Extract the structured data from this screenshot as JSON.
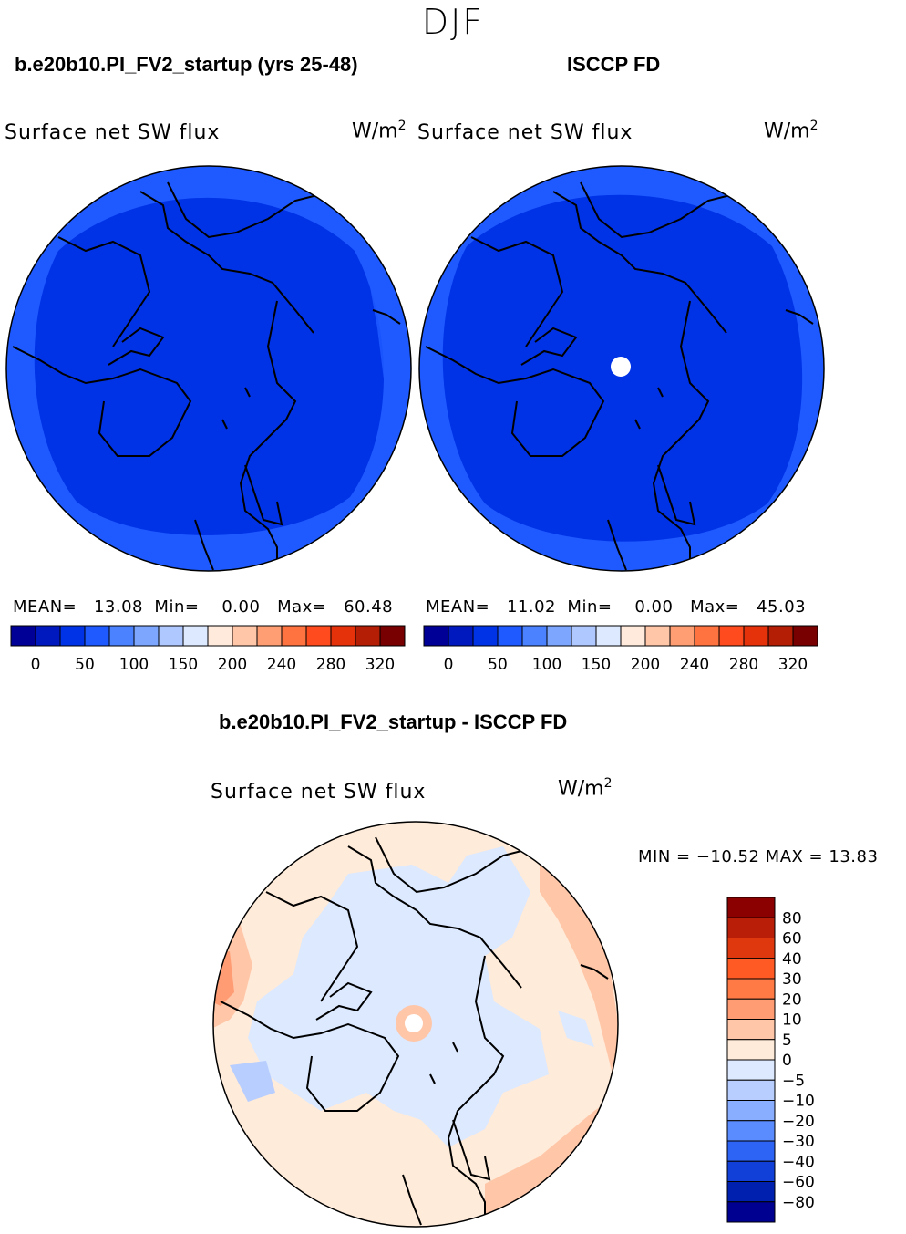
{
  "season": "DJF",
  "left_panel": {
    "title": "b.e20b10.PI_FV2_startup (yrs 25-48)",
    "variable": "Surface net SW flux",
    "units_base": "W/m",
    "units_exp": "2",
    "mean_label": "MEAN=",
    "mean_value": "13.08",
    "min_label": "Min=",
    "min_value": "0.00",
    "max_label": "Max=",
    "max_value": "60.48"
  },
  "right_panel": {
    "title": "ISCCP FD",
    "variable": "Surface net SW flux",
    "units_base": "W/m",
    "units_exp": "2",
    "mean_label": "MEAN=",
    "mean_value": "11.02",
    "min_label": "Min=",
    "min_value": "0.00",
    "max_label": "Max=",
    "max_value": "45.03"
  },
  "diff_panel": {
    "title": "b.e20b10.PI_FV2_startup - ISCCP FD",
    "variable": "Surface net SW flux",
    "units_base": "W/m",
    "units_exp": "2",
    "minmax_text": "MIN = −10.52 MAX =   13.83"
  },
  "chart_data": [
    {
      "type": "heatmap",
      "projection": "north polar stereographic",
      "title": "b.e20b10.PI_FV2_startup (yrs 25-48)",
      "field": "Surface net SW flux",
      "units": "W/m2",
      "mean": 13.08,
      "min": 0.0,
      "max": 60.48,
      "colorbar_levels": [
        0,
        25,
        50,
        75,
        100,
        125,
        150,
        175,
        200,
        220,
        240,
        260,
        280,
        300,
        320
      ],
      "colorbar_tick_labels": [
        "0",
        "50",
        "100",
        "150",
        "200",
        "240",
        "280",
        "320"
      ],
      "colorbar_colors": [
        "#000096",
        "#0019bf",
        "#0032e6",
        "#1e5aff",
        "#4b82ff",
        "#7da7ff",
        "#afc8ff",
        "#dce9ff",
        "#ffeadb",
        "#ffc6a8",
        "#ff9e73",
        "#ff7340",
        "#ff4b1e",
        "#e6320a",
        "#b41e05",
        "#780000"
      ]
    },
    {
      "type": "heatmap",
      "projection": "north polar stereographic",
      "title": "ISCCP FD",
      "field": "Surface net SW flux",
      "units": "W/m2",
      "mean": 11.02,
      "min": 0.0,
      "max": 45.03,
      "colorbar_levels": [
        0,
        25,
        50,
        75,
        100,
        125,
        150,
        175,
        200,
        220,
        240,
        260,
        280,
        300,
        320
      ],
      "colorbar_tick_labels": [
        "0",
        "50",
        "100",
        "150",
        "200",
        "240",
        "280",
        "320"
      ],
      "colorbar_colors": [
        "#000096",
        "#0019bf",
        "#0032e6",
        "#1e5aff",
        "#4b82ff",
        "#7da7ff",
        "#afc8ff",
        "#dce9ff",
        "#ffeadb",
        "#ffc6a8",
        "#ff9e73",
        "#ff7340",
        "#ff4b1e",
        "#e6320a",
        "#b41e05",
        "#780000"
      ]
    },
    {
      "type": "heatmap",
      "projection": "north polar stereographic",
      "title": "b.e20b10.PI_FV2_startup - ISCCP FD",
      "field": "Surface net SW flux (difference)",
      "units": "W/m2",
      "min": -10.52,
      "max": 13.83,
      "colorbar_tick_labels": [
        "80",
        "60",
        "40",
        "30",
        "20",
        "10",
        "5",
        "0",
        "−5",
        "−10",
        "−20",
        "−30",
        "−40",
        "−60",
        "−80"
      ],
      "colorbar_colors": [
        "#8b0000",
        "#b81e08",
        "#e0380e",
        "#ff5a23",
        "#ff7a45",
        "#ff9c73",
        "#ffc6a8",
        "#ffebd9",
        "#dce9ff",
        "#b7ceff",
        "#8aaeff",
        "#5b8cff",
        "#2e64f5",
        "#1040d8",
        "#0020b0",
        "#000090"
      ]
    }
  ]
}
